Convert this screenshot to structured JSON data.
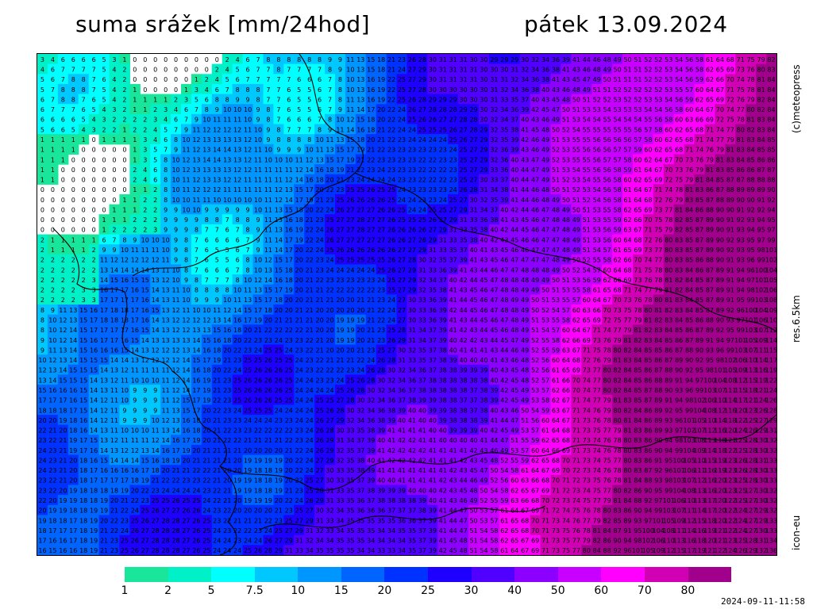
{
  "header": {
    "title": "suma srážek [mm/24hod]",
    "date": "pátek 13.09.2024"
  },
  "side_labels": {
    "copyright": "(c)meteopress",
    "resolution": "res.6.5km",
    "model": "icon-eu"
  },
  "legend": {
    "colors": [
      "#19e69a",
      "#00f0c8",
      "#00ffff",
      "#00c8ff",
      "#0096ff",
      "#0064ff",
      "#0032ff",
      "#1e00ff",
      "#5000ff",
      "#8c00ff",
      "#c800ff",
      "#ff00ff",
      "#d200b4",
      "#a0008c"
    ],
    "labels": [
      "1",
      "2",
      "5",
      "7.5",
      "10",
      "15",
      "20",
      "25",
      "30",
      "40",
      "50",
      "60",
      "70",
      "80"
    ]
  },
  "footer": {
    "timestamp": "2024-09-11-11:58"
  }
}
